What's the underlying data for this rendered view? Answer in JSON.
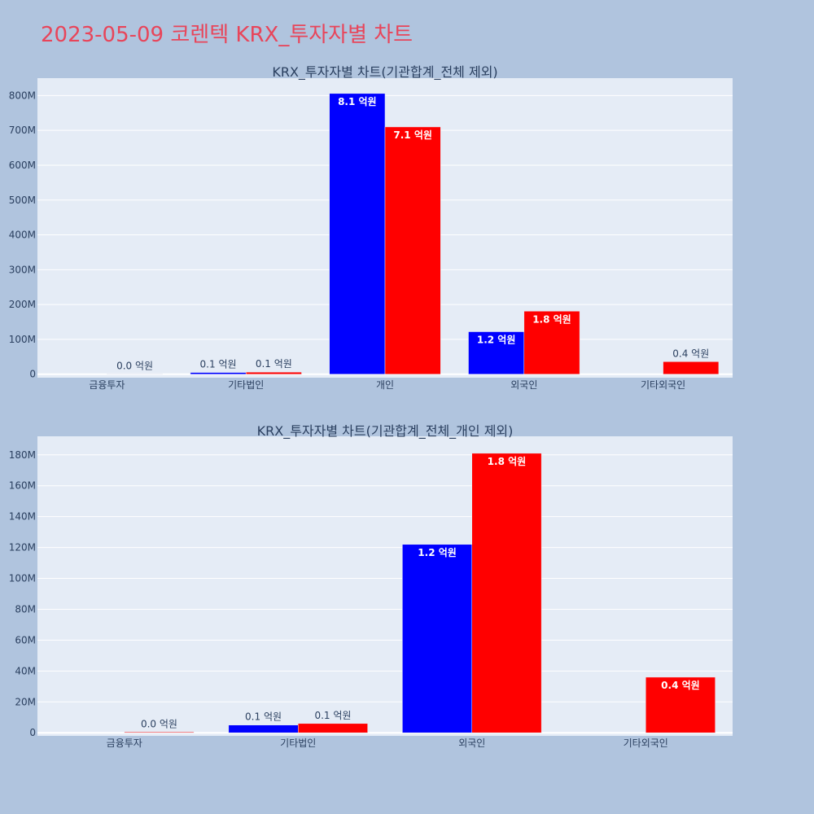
{
  "page_title": "2023-05-09 코렌텍 KRX_투자자별 차트",
  "colors": {
    "series_a": "#0000ff",
    "series_b": "#ff0000",
    "title": "#e8455a",
    "background": "#b0c4de",
    "plot_bg": "#e5ecf6"
  },
  "chart_data": [
    {
      "type": "bar",
      "title": "KRX_투자자별 차트(기관합계_전체 제외)",
      "categories": [
        "금융투자",
        "기타법인",
        "개인",
        "외국인",
        "기타외국인"
      ],
      "series": [
        {
          "color": "#0000ff",
          "values": [
            0,
            5000000,
            806000000,
            122000000,
            0
          ],
          "labels": [
            "",
            "0.1 억원",
            "8.1 억원",
            "1.2 억원",
            ""
          ]
        },
        {
          "color": "#ff0000",
          "values": [
            500000,
            6000000,
            710000000,
            181000000,
            36000000
          ],
          "labels": [
            "0.0 억원",
            "0.1 억원",
            "7.1 억원",
            "1.8 억원",
            "0.4 억원"
          ]
        }
      ],
      "ylim": [
        -10000000,
        850000000
      ],
      "yticks": [
        0,
        100000000,
        200000000,
        300000000,
        400000000,
        500000000,
        600000000,
        700000000,
        800000000
      ],
      "ytick_labels": [
        "0",
        "100M",
        "200M",
        "300M",
        "400M",
        "500M",
        "600M",
        "700M",
        "800M"
      ],
      "grid": true
    },
    {
      "type": "bar",
      "title": "KRX_투자자별 차트(기관합계_전체_개인 제외)",
      "categories": [
        "금융투자",
        "기타법인",
        "외국인",
        "기타외국인"
      ],
      "series": [
        {
          "color": "#0000ff",
          "values": [
            0,
            5000000,
            122000000,
            0
          ],
          "labels": [
            "",
            "0.1 억원",
            "1.2 억원",
            ""
          ]
        },
        {
          "color": "#ff0000",
          "values": [
            500000,
            6000000,
            181000000,
            36000000
          ],
          "labels": [
            "0.0 억원",
            "0.1 억원",
            "1.8 억원",
            "0.4 억원"
          ]
        }
      ],
      "ylim": [
        -2000000,
        192000000
      ],
      "yticks": [
        0,
        20000000,
        40000000,
        60000000,
        80000000,
        100000000,
        120000000,
        140000000,
        160000000,
        180000000
      ],
      "ytick_labels": [
        "0",
        "20M",
        "40M",
        "60M",
        "80M",
        "100M",
        "120M",
        "140M",
        "160M",
        "180M"
      ],
      "grid": true
    }
  ]
}
